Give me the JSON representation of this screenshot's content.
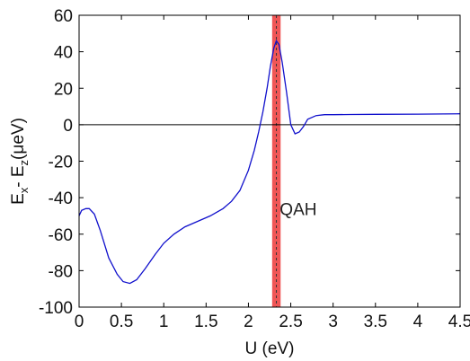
{
  "chart_data": {
    "type": "line",
    "xlabel": "U (eV)",
    "ylabel": {
      "main": "E",
      "sub1": "x",
      "dash": "- E",
      "sub2": "z",
      "unit": "(μeV)"
    },
    "xlim": [
      0,
      4.5
    ],
    "ylim": [
      -100,
      60
    ],
    "xticks": [
      0,
      0.5,
      1,
      1.5,
      2,
      2.5,
      3,
      3.5,
      4,
      4.5
    ],
    "yticks": [
      -100,
      -80,
      -60,
      -40,
      -20,
      0,
      20,
      40,
      60
    ],
    "xtick_labels": [
      "0",
      "0.5",
      "1",
      "1.5",
      "2",
      "2.5",
      "3",
      "3.5",
      "4",
      "4.5"
    ],
    "ytick_labels": [
      "-100",
      "-80",
      "-60",
      "-40",
      "-20",
      "0",
      "20",
      "40",
      "60"
    ],
    "zero_line": 0,
    "series": [
      {
        "color": "#1010cc",
        "x": [
          0,
          0.03,
          0.08,
          0.12,
          0.18,
          0.25,
          0.35,
          0.45,
          0.52,
          0.6,
          0.68,
          0.78,
          0.9,
          1.0,
          1.12,
          1.25,
          1.4,
          1.55,
          1.7,
          1.8,
          1.9,
          2.0,
          2.07,
          2.12,
          2.17,
          2.22,
          2.26,
          2.3,
          2.33,
          2.36,
          2.4,
          2.45,
          2.5,
          2.55,
          2.6,
          2.65,
          2.7,
          2.8,
          2.9,
          3.0,
          3.2,
          3.5,
          4.0,
          4.5
        ],
        "y": [
          -50,
          -47,
          -46,
          -46,
          -49,
          -58,
          -73,
          -82,
          -86,
          -87,
          -85,
          -79,
          -71,
          -65,
          -60,
          -56,
          -53,
          -50,
          -46,
          -42,
          -36,
          -25,
          -14,
          -4,
          7,
          20,
          32,
          42,
          46,
          44,
          34,
          18,
          0,
          -5,
          -4,
          -1,
          3,
          5,
          5.5,
          5.5,
          5.6,
          5.7,
          5.8,
          6
        ]
      }
    ],
    "highlight_band": {
      "x_from": 2.28,
      "x_to": 2.38,
      "color": "#ee4444",
      "line_x": 2.33
    },
    "annotation": {
      "text": "QAH",
      "x": 2.37,
      "y": -46
    }
  }
}
